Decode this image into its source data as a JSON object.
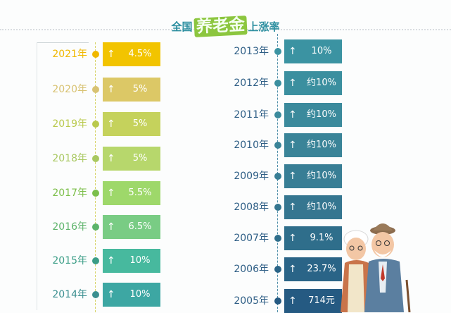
{
  "title": {
    "part1": "全国",
    "highlight": "养老金",
    "part2": "上涨率"
  },
  "left": [
    {
      "year": "2021年",
      "value": "4.5%",
      "color": "#f2c400",
      "year_color": "#f0b800"
    },
    {
      "year": "2020年",
      "value": "5%",
      "color": "#dcc866",
      "year_color": "#d8c272"
    },
    {
      "year": "2019年",
      "value": "5%",
      "color": "#c5d25c",
      "year_color": "#b9c94c"
    },
    {
      "year": "2018年",
      "value": "5%",
      "color": "#b7d76c",
      "year_color": "#a8c860"
    },
    {
      "year": "2017年",
      "value": "5.5%",
      "color": "#9ed86a",
      "year_color": "#7cbf4a"
    },
    {
      "year": "2016年",
      "value": "6.5%",
      "color": "#79cc84",
      "year_color": "#5cb36a"
    },
    {
      "year": "2015年",
      "value": "10%",
      "color": "#47b99e",
      "year_color": "#3a9d86"
    },
    {
      "year": "2014年",
      "value": "10%",
      "color": "#3da7a3",
      "year_color": "#3b8f90"
    }
  ],
  "right": [
    {
      "year": "2013年",
      "value": "10%",
      "color": "#3b93a2"
    },
    {
      "year": "2012年",
      "value": "约10%",
      "color": "#3b8f9f"
    },
    {
      "year": "2011年",
      "value": "约10%",
      "color": "#3b8a9c"
    },
    {
      "year": "2010年",
      "value": "约10%",
      "color": "#3a8498"
    },
    {
      "year": "2009年",
      "value": "约10%",
      "color": "#387e95"
    },
    {
      "year": "2008年",
      "value": "约10%",
      "color": "#357690"
    },
    {
      "year": "2007年",
      "value": "9.1%",
      "color": "#2f6e8b"
    },
    {
      "year": "2006年",
      "value": "23.7%",
      "color": "#2a6487"
    },
    {
      "year": "2005年",
      "value": "714元",
      "color": "#255a82"
    }
  ],
  "arrow_glyph": "↑",
  "colors": {
    "right_year": "#2f5f86",
    "title_accent": "#2d8fa0",
    "title_badge": "#8cc63f"
  }
}
